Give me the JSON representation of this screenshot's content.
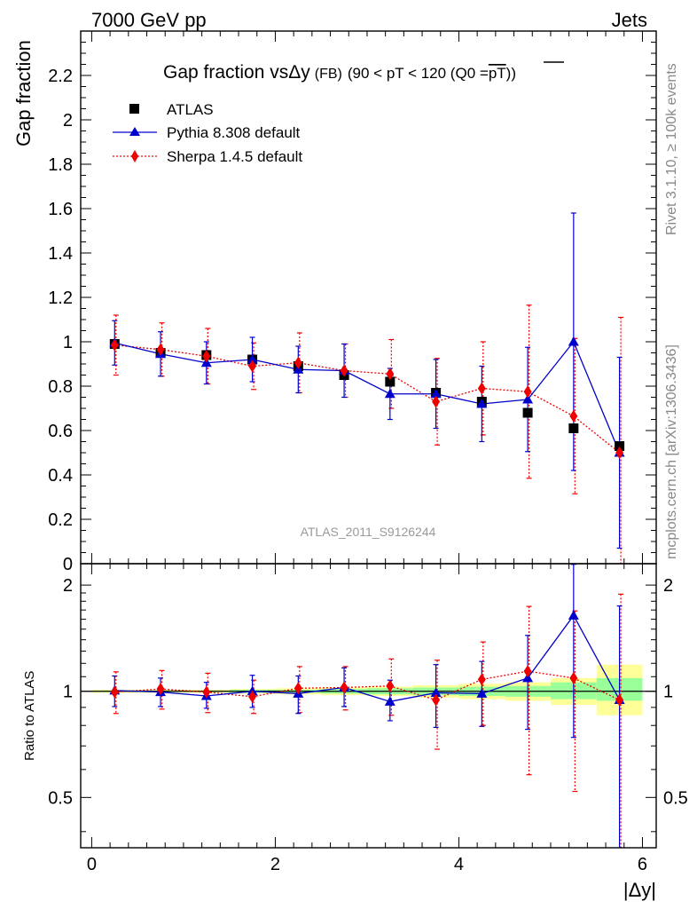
{
  "header": {
    "left": "7000 GeV pp",
    "right": "Jets"
  },
  "side_labels": {
    "rivet": "Rivet 3.1.10, ≥ 100k events",
    "mcplots": "mcplots.cern.ch [arXiv:1306.3436]"
  },
  "main_title": {
    "prefix": "Gap fraction vs",
    "var": "Δy",
    "suffix_small": "(FB)",
    "cut": "(90 < pT < 120 (Q0 =",
    "cut_over": "pT",
    "cut_close": "))"
  },
  "watermark": "ATLAS_2011_S9126244",
  "legend": [
    {
      "label": "ATLAS",
      "color": "#000000",
      "marker": "square"
    },
    {
      "label": "Pythia 8.308 default",
      "color": "#0000cc",
      "marker": "triangle"
    },
    {
      "label": "Sherpa 1.4.5 default",
      "color": "#ee0000",
      "marker": "diamond"
    }
  ],
  "chart_data": [
    {
      "type": "scatter",
      "title": "Gap fraction vs Δy (FB) (90 < pT < 120 (Q0 = pT))",
      "ylabel": "Gap fraction",
      "xlabel": "|Δy|",
      "xlim": [
        -0.12,
        6.15
      ],
      "ylim": [
        0,
        2.4
      ],
      "yticks": [
        0,
        0.2,
        0.4,
        0.6,
        0.8,
        1,
        1.2,
        1.4,
        1.6,
        1.8,
        2,
        2.2
      ],
      "ytick_labels": [
        "0",
        "0.2",
        "0.4",
        "0.6",
        "0.8",
        "1",
        "1.2",
        "1.4",
        "1.6",
        "1.8",
        "2",
        "2.2"
      ],
      "x": [
        0.25,
        0.75,
        1.25,
        1.75,
        2.25,
        2.75,
        3.25,
        3.75,
        4.25,
        4.75,
        5.25,
        5.75
      ],
      "series": [
        {
          "name": "ATLAS",
          "values": [
            0.99,
            0.95,
            0.94,
            0.92,
            0.89,
            0.85,
            0.82,
            0.77,
            0.73,
            0.68,
            0.61,
            0.53
          ]
        },
        {
          "name": "Pythia 8.308 default",
          "values": [
            0.995,
            0.945,
            0.905,
            0.92,
            0.875,
            0.87,
            0.765,
            0.765,
            0.72,
            0.74,
            1.0,
            0.5
          ],
          "err": [
            0.1,
            0.1,
            0.095,
            0.1,
            0.105,
            0.12,
            0.115,
            0.155,
            0.17,
            0.235,
            0.58,
            0.43
          ]
        },
        {
          "name": "Sherpa 1.4.5 default",
          "values": [
            0.985,
            0.965,
            0.935,
            0.89,
            0.905,
            0.87,
            0.855,
            0.73,
            0.79,
            0.775,
            0.665,
            0.5
          ],
          "err": [
            0.135,
            0.12,
            0.125,
            0.105,
            0.135,
            0.12,
            0.155,
            0.195,
            0.21,
            0.39,
            0.35,
            0.61
          ]
        }
      ]
    },
    {
      "type": "scatter",
      "title": "",
      "ylabel": "Ratio to ATLAS",
      "xlabel": "|Δy|",
      "yscale": "log",
      "xlim": [
        -0.12,
        6.15
      ],
      "ylim": [
        0.36,
        2.3
      ],
      "yticks": [
        0.5,
        1,
        2
      ],
      "ytick_labels": [
        "0.5",
        "1",
        "2"
      ],
      "xticks": [
        0,
        2,
        4,
        6
      ],
      "xtick_labels": [
        "0",
        "2",
        "4",
        "6"
      ],
      "x": [
        0.25,
        0.75,
        1.25,
        1.75,
        2.25,
        2.75,
        3.25,
        3.75,
        4.25,
        4.75,
        5.25,
        5.75
      ],
      "bands": [
        {
          "x0": 0.0,
          "x1": 0.5,
          "stat": [
            0.995,
            1.005
          ],
          "total": [
            0.99,
            1.01
          ]
        },
        {
          "x0": 0.5,
          "x1": 1.0,
          "stat": [
            0.995,
            1.005
          ],
          "total": [
            0.99,
            1.01
          ]
        },
        {
          "x0": 1.0,
          "x1": 1.5,
          "stat": [
            0.995,
            1.005
          ],
          "total": [
            0.99,
            1.01
          ]
        },
        {
          "x0": 1.5,
          "x1": 2.0,
          "stat": [
            0.99,
            1.01
          ],
          "total": [
            0.985,
            1.015
          ]
        },
        {
          "x0": 2.0,
          "x1": 2.5,
          "stat": [
            0.99,
            1.01
          ],
          "total": [
            0.98,
            1.02
          ]
        },
        {
          "x0": 2.5,
          "x1": 3.0,
          "stat": [
            0.985,
            1.015
          ],
          "total": [
            0.975,
            1.025
          ]
        },
        {
          "x0": 3.0,
          "x1": 3.5,
          "stat": [
            0.98,
            1.02
          ],
          "total": [
            0.97,
            1.03
          ]
        },
        {
          "x0": 3.5,
          "x1": 4.0,
          "stat": [
            0.975,
            1.025
          ],
          "total": [
            0.96,
            1.04
          ]
        },
        {
          "x0": 4.0,
          "x1": 4.5,
          "stat": [
            0.97,
            1.03
          ],
          "total": [
            0.95,
            1.05
          ]
        },
        {
          "x0": 4.5,
          "x1": 5.0,
          "stat": [
            0.965,
            1.035
          ],
          "total": [
            0.94,
            1.06
          ]
        },
        {
          "x0": 5.0,
          "x1": 5.5,
          "stat": [
            0.95,
            1.06
          ],
          "total": [
            0.915,
            1.09
          ]
        },
        {
          "x0": 5.5,
          "x1": 6.0,
          "stat": [
            0.94,
            1.09
          ],
          "total": [
            0.855,
            1.19
          ]
        }
      ],
      "series": [
        {
          "name": "Pythia 8.308 default",
          "values": [
            1.005,
            0.995,
            0.97,
            1.0,
            0.985,
            1.025,
            0.935,
            0.99,
            0.985,
            1.09,
            1.64,
            0.945
          ],
          "err_low": [
            0.1,
            0.09,
            0.075,
            0.1,
            0.12,
            0.12,
            0.11,
            0.2,
            0.19,
            0.31,
            0.9,
            0.6
          ],
          "err_high": [
            0.1,
            0.095,
            0.09,
            0.11,
            0.12,
            0.14,
            0.14,
            0.2,
            0.23,
            0.35,
            0.65,
            0.8
          ]
        },
        {
          "name": "Sherpa 1.4.5 default",
          "values": [
            0.995,
            1.015,
            0.995,
            0.965,
            1.02,
            1.025,
            1.035,
            0.945,
            1.08,
            1.14,
            1.09,
            0.945
          ],
          "err_low": [
            0.13,
            0.125,
            0.125,
            0.1,
            0.15,
            0.14,
            0.18,
            0.26,
            0.28,
            0.56,
            0.57,
            0.9
          ],
          "err_high": [
            0.14,
            0.13,
            0.13,
            0.11,
            0.155,
            0.15,
            0.2,
            0.28,
            0.3,
            0.6,
            0.6,
            0.94
          ]
        }
      ]
    }
  ]
}
